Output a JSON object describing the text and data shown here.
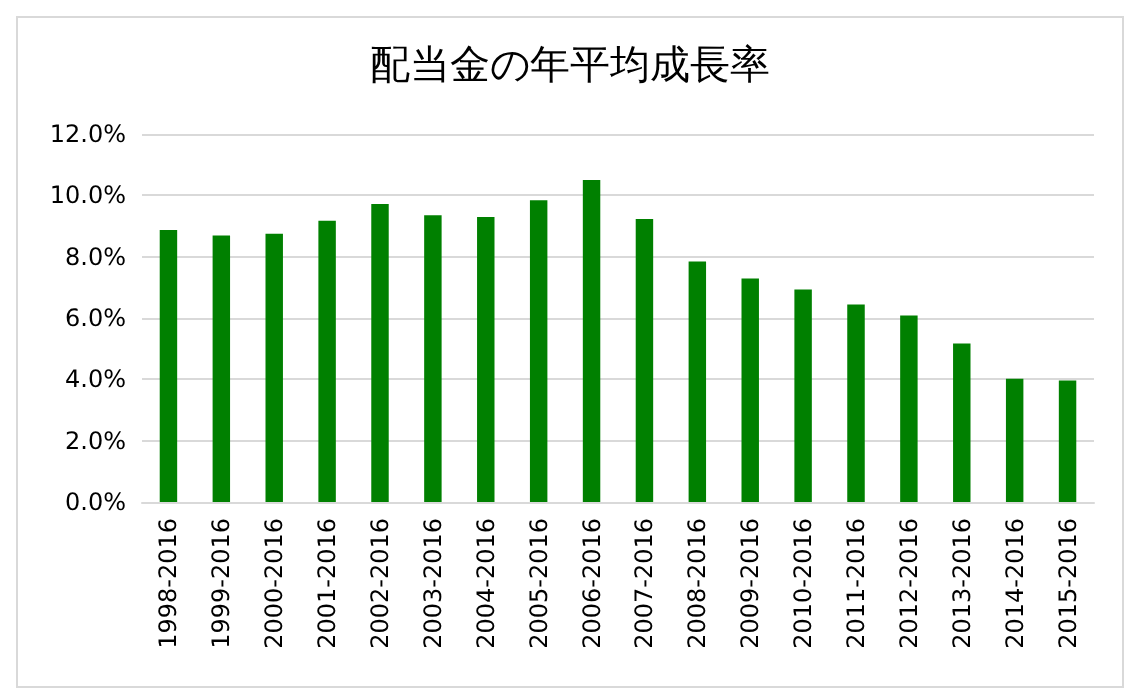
{
  "chart_data": {
    "type": "bar",
    "title": "配当金の年平均成長率",
    "categories": [
      "1998-2016",
      "1999-2016",
      "2000-2016",
      "2001-2016",
      "2002-2016",
      "2003-2016",
      "2004-2016",
      "2005-2016",
      "2006-2016",
      "2007-2016",
      "2008-2016",
      "2009-2016",
      "2010-2016",
      "2011-2016",
      "2012-2016",
      "2013-2016",
      "2014-2016",
      "2015-2016"
    ],
    "values": [
      8.87,
      8.69,
      8.75,
      9.17,
      9.72,
      9.35,
      9.29,
      9.84,
      10.5,
      9.23,
      7.84,
      7.29,
      6.93,
      6.44,
      6.08,
      5.17,
      4.02,
      3.96
    ],
    "color": "#008000",
    "ylim": [
      0,
      12
    ],
    "yticks": [
      {
        "value": 0,
        "label": "0.0%"
      },
      {
        "value": 2,
        "label": "2.0%"
      },
      {
        "value": 4,
        "label": "4.0%"
      },
      {
        "value": 6,
        "label": "6.0%"
      },
      {
        "value": 8,
        "label": "8.0%"
      },
      {
        "value": 10,
        "label": "10.0%"
      },
      {
        "value": 12,
        "label": "12.0%"
      }
    ],
    "grid": "y"
  }
}
